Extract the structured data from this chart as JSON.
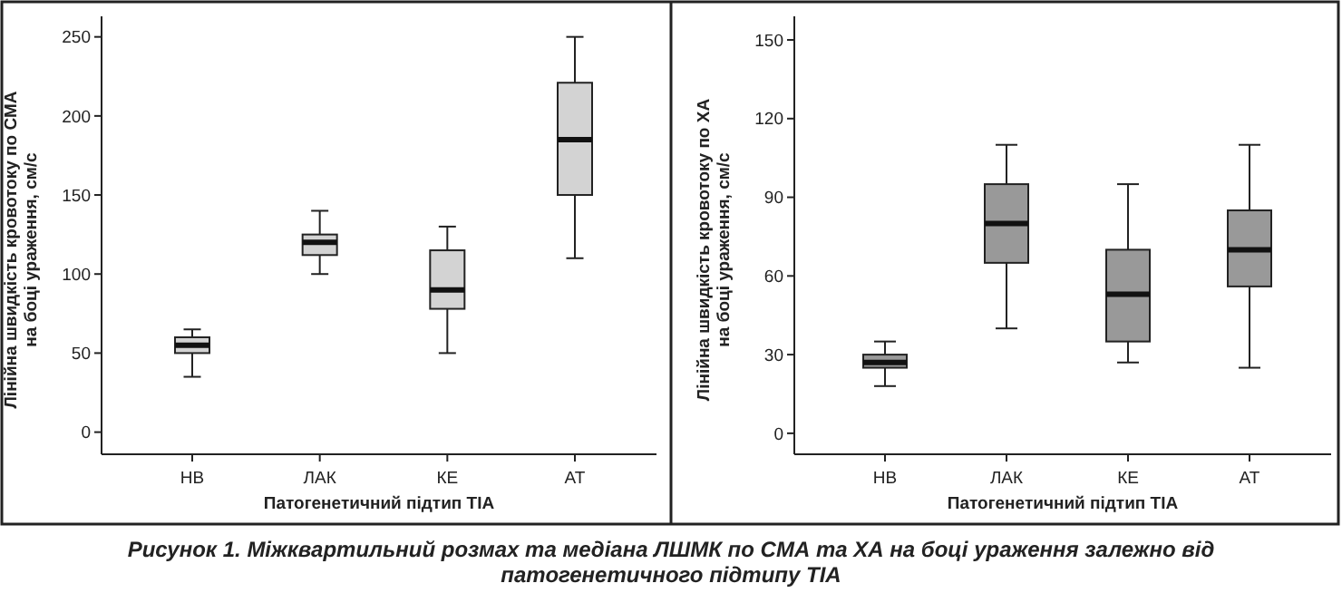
{
  "chart_data": [
    {
      "type": "box",
      "xlabel": "Патогенетичний підтип ТІА",
      "ylabel": "Лінійна швидкість кровотоку по СМА на боці ураження, см/с",
      "categories": [
        "НВ",
        "ЛАК",
        "КЕ",
        "АТ"
      ],
      "ylim": [
        -14,
        263
      ],
      "yticks": [
        0,
        50,
        100,
        150,
        200,
        250
      ],
      "annotations": [
        "Рисунок 1. Міжквартильний розмах та медіана ЛШМК по СМА та ХА на боці ураження залежно від патогенетичного підтипу ТІА"
      ],
      "series": [
        {
          "color": "#d3d3d3",
          "boxes": [
            {
              "low": 35,
              "q1": 50,
              "median": 55,
              "q3": 60,
              "high": 65
            },
            {
              "low": 100,
              "q1": 112,
              "median": 120,
              "q3": 125,
              "high": 140
            },
            {
              "low": 50,
              "q1": 78,
              "median": 90,
              "q3": 115,
              "high": 130
            },
            {
              "low": 110,
              "q1": 150,
              "median": 185,
              "q3": 221,
              "high": 250
            }
          ]
        }
      ]
    },
    {
      "type": "box",
      "xlabel": "Патогенетичний підтип ТІА",
      "ylabel": "Лінійна швидкість кровотоку по ХА на боці ураження, см/с",
      "categories": [
        "НВ",
        "ЛАК",
        "КЕ",
        "АТ"
      ],
      "ylim": [
        -8,
        159
      ],
      "yticks": [
        0,
        30,
        60,
        90,
        120,
        150
      ],
      "series": [
        {
          "color": "#999999",
          "boxes": [
            {
              "low": 18,
              "q1": 25,
              "median": 27,
              "q3": 30,
              "high": 35
            },
            {
              "low": 40,
              "q1": 65,
              "median": 80,
              "q3": 95,
              "high": 110
            },
            {
              "low": 27,
              "q1": 35,
              "median": 53,
              "q3": 70,
              "high": 95
            },
            {
              "low": 25,
              "q1": 56,
              "median": 70,
              "q3": 85,
              "high": 110
            }
          ]
        }
      ]
    }
  ]
}
